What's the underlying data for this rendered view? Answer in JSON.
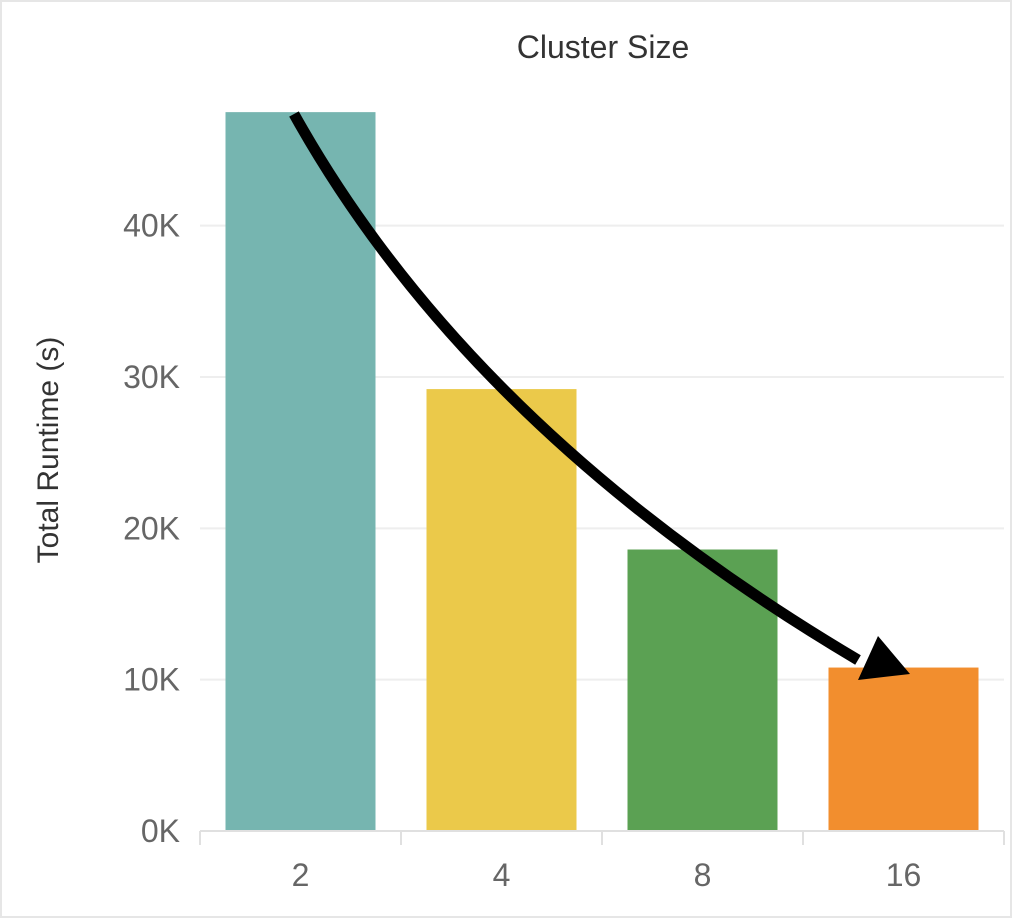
{
  "chart_data": {
    "type": "bar",
    "title": "Cluster Size",
    "xlabel": "",
    "ylabel": "Total Runtime (s)",
    "categories": [
      "2",
      "4",
      "8",
      "16"
    ],
    "values": [
      47500,
      29200,
      18600,
      10800
    ],
    "colors": [
      "#76b5b0",
      "#ebc94a",
      "#5ba153",
      "#f28e2e"
    ],
    "ylim": [
      0,
      48500
    ],
    "yticks": [
      0,
      10000,
      20000,
      30000,
      40000
    ],
    "ytick_labels": [
      "0K",
      "10K",
      "20K",
      "30K",
      "40K"
    ],
    "grid": true,
    "legend": "none",
    "annotations": [
      {
        "type": "arrow",
        "from_category": "2",
        "to_category": "16",
        "description": "decreasing trend"
      }
    ]
  }
}
